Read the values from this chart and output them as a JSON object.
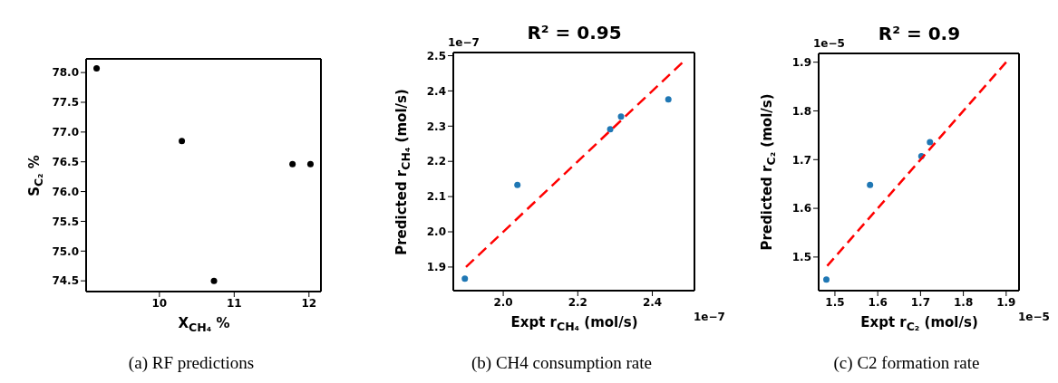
{
  "chart_data": [
    {
      "type": "scatter",
      "xlabel": "X$_{CH₄}$ %",
      "ylabel": "S$_{C₂}$ %",
      "series": [
        {
          "color": "#000000",
          "marker": "circle",
          "x": [
            9.16,
            10.3,
            10.73,
            11.78,
            12.02
          ],
          "values": [
            78.07,
            76.85,
            74.5,
            76.46,
            76.46
          ]
        }
      ],
      "xlim": [
        9.02,
        12.16
      ],
      "xticks": [
        10,
        11,
        12
      ],
      "ylim": [
        74.32,
        78.23
      ],
      "yticks": [
        74.5,
        {
          "value": 75,
          "label": "75.0"
        },
        75.5,
        {
          "value": 76,
          "label": "76.0"
        },
        76.5,
        {
          "value": 77,
          "label": "77.0"
        },
        77.5,
        {
          "value": 78,
          "label": "78.0"
        }
      ],
      "annotations": [
        "(a) RF predictions"
      ]
    },
    {
      "type": "scatter",
      "title": "R² = 0.95",
      "xlabel": "Expt r$_{CH₄}$ (mol/s)",
      "ylabel": "Predicted r$_{CH₄}$ (mol/s)",
      "series": [
        {
          "type": "scatter",
          "color": "#1f77b4",
          "marker": "circle",
          "x": [
            1.897,
            2.038,
            2.287,
            2.316,
            2.443
          ],
          "values": [
            1.867,
            2.133,
            2.291,
            2.327,
            2.376
          ]
        },
        {
          "type": "line",
          "color": "#ff0000",
          "line_style": "dashed",
          "marker": "none",
          "x": [
            1.9,
            2.48
          ],
          "values": [
            1.9,
            2.48
          ]
        }
      ],
      "xlim": [
        1.866,
        2.513
      ],
      "xticks": [
        {
          "value": 2,
          "label": "2.0"
        },
        2.2,
        2.4
      ],
      "ylim": [
        1.833,
        2.509
      ],
      "yticks": [
        1.9,
        {
          "value": 2,
          "label": "2.0"
        },
        2.1,
        2.2,
        2.3,
        2.4,
        2.5
      ],
      "annotations": [
        "1e−7",
        "1e−7",
        "(b) CH4 consumption rate"
      ]
    },
    {
      "type": "scatter",
      "title": "R² = 0.9",
      "xlabel": "Expt r$_{C₂}$ (mol/s)",
      "ylabel": "Predicted r$_{C₂}$ (mol/s)",
      "series": [
        {
          "type": "scatter",
          "color": "#1f77b4",
          "marker": "circle",
          "x": [
            1.48,
            1.582,
            1.702,
            1.722
          ],
          "values": [
            1.454,
            1.648,
            1.707,
            1.736
          ]
        },
        {
          "type": "line",
          "color": "#ff0000",
          "line_style": "dashed",
          "marker": "none",
          "x": [
            1.482,
            1.9
          ],
          "values": [
            1.482,
            1.9
          ]
        }
      ],
      "xlim": [
        1.462,
        1.93
      ],
      "xticks": [
        1.5,
        1.6,
        1.7,
        1.8,
        1.9
      ],
      "ylim": [
        1.431,
        1.918
      ],
      "yticks": [
        1.5,
        1.6,
        1.7,
        1.8,
        1.9
      ],
      "annotations": [
        "1e−5",
        "1e−5",
        "(c) C2 formation rate"
      ]
    }
  ]
}
